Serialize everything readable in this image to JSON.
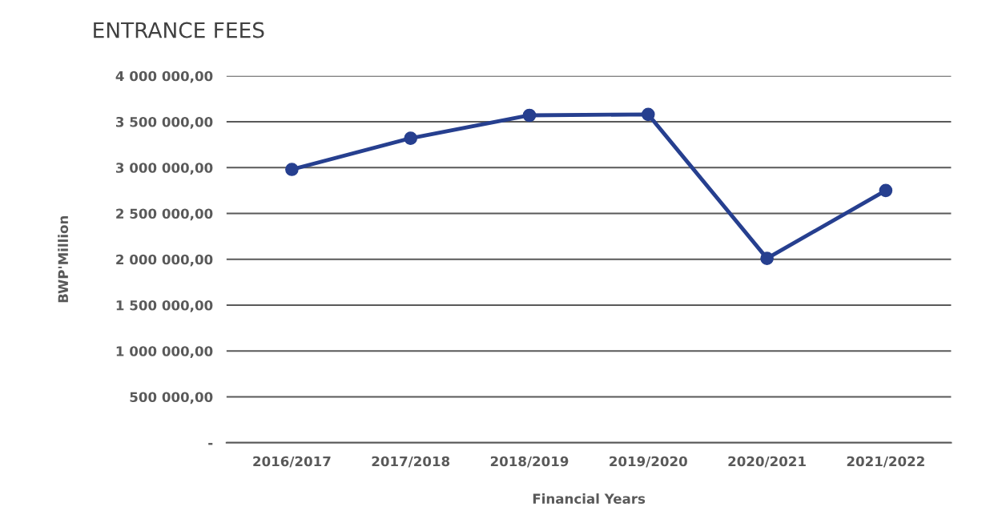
{
  "chart_data": {
    "type": "line",
    "title": "ENTRANCE FEES",
    "xlabel": "Financial Years",
    "ylabel": "BWP'Million",
    "categories": [
      "2016/2017",
      "2017/2018",
      "2018/2019",
      "2019/2020",
      "2020/2021",
      "2021/2022"
    ],
    "series": [
      {
        "color": "#263f8f",
        "values": [
          2980000,
          3320000,
          3570000,
          3580000,
          2010000,
          2750000
        ]
      }
    ],
    "ylim": [
      0,
      4000000
    ],
    "yticks": [
      {
        "value": 0,
        "label": "-"
      },
      {
        "value": 500000,
        "label": "500 000,00"
      },
      {
        "value": 1000000,
        "label": "1 000 000,00"
      },
      {
        "value": 1500000,
        "label": "1 500 000,00"
      },
      {
        "value": 2000000,
        "label": "2 000 000,00"
      },
      {
        "value": 2500000,
        "label": "2 500 000,00"
      },
      {
        "value": 3000000,
        "label": "3 000 000,00"
      },
      {
        "value": 3500000,
        "label": "3 500 000,00"
      },
      {
        "value": 4000000,
        "label": "4 000 000,00"
      }
    ],
    "grid": "y",
    "marker": "circle",
    "line_style": "solid"
  }
}
